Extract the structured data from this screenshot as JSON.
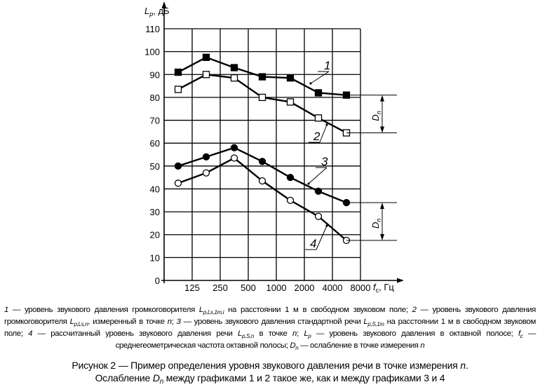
{
  "chart_data": {
    "type": "line",
    "ylabel_main": "L",
    "ylabel_sub": "p",
    "ylabel_unit": ", дБ",
    "xlabel_main": "f",
    "xlabel_sub": "c",
    "xlabel_unit": ", Гц",
    "ylim": [
      0,
      110
    ],
    "yticks": [
      0,
      10,
      20,
      30,
      40,
      50,
      60,
      70,
      80,
      90,
      100,
      110
    ],
    "categories": [
      "125",
      "250",
      "500",
      "1000",
      "2000",
      "4000",
      "8000"
    ],
    "grid": true,
    "series": [
      {
        "name": "1",
        "marker": "filled-square",
        "values": [
          91,
          97.5,
          93,
          89,
          88.5,
          82,
          81
        ]
      },
      {
        "name": "2",
        "marker": "open-square",
        "values": [
          83.5,
          90,
          88.5,
          80,
          78,
          71,
          64.5
        ]
      },
      {
        "name": "3",
        "marker": "filled-circle",
        "values": [
          50,
          54,
          58,
          52,
          45,
          39,
          34
        ]
      },
      {
        "name": "4",
        "marker": "open-circle",
        "values": [
          42.5,
          47,
          53.5,
          43.5,
          35,
          28,
          17.5
        ]
      }
    ],
    "annotations": {
      "dn_main": "D",
      "dn_sub": "n"
    }
  },
  "notes": [
    {
      "t": "1",
      "i": true
    },
    {
      "t": " — уровень звукового давления громкоговорителя "
    },
    {
      "t": "L",
      "i": true
    },
    {
      "t": "p,Ls,1m,i",
      "sub": true
    },
    {
      "t": " на расстоянии 1 м в свободном звуковом поле; "
    },
    {
      "t": "2",
      "i": true
    },
    {
      "t": " — уровень звукового давления громкоговорителя "
    },
    {
      "t": "L",
      "i": true
    },
    {
      "t": "p,Ls,n",
      "sub": true
    },
    {
      "t": ", измеренный в точке "
    },
    {
      "t": "n",
      "i": true
    },
    {
      "t": "; "
    },
    {
      "t": "3",
      "i": true
    },
    {
      "t": " — уровень звукового давления стандартной речи "
    },
    {
      "t": "L",
      "i": true
    },
    {
      "t": "p,S,1m",
      "sub": true
    },
    {
      "t": " на расстоянии 1 м в свободном звуковом поле; "
    },
    {
      "t": "4",
      "i": true
    },
    {
      "t": " — рассчитанный уровень звукового давления речи "
    },
    {
      "t": "L",
      "i": true
    },
    {
      "t": "p,S,n",
      "sub": true
    },
    {
      "t": " в точке "
    },
    {
      "t": "n",
      "i": true
    },
    {
      "t": "; "
    },
    {
      "t": "L",
      "i": true
    },
    {
      "t": "p",
      "sub": true
    },
    {
      "t": " — уровень звукового давле­ния в октавной полосе; "
    },
    {
      "t": "f",
      "i": true
    },
    {
      "t": "c",
      "sub": true
    },
    {
      "t": " — среднегеометрическая частота октавной полосы; "
    },
    {
      "t": "D",
      "i": true
    },
    {
      "t": "n",
      "sub": true
    },
    {
      "t": " — ослабление в точке измерения "
    },
    {
      "t": "n",
      "i": true
    }
  ],
  "caption": {
    "line1": "Рисунок  2 — Пример определения уровня звукового давления речи в точке измерения ",
    "line1_n": "n",
    "line1_end": ".",
    "line2_a": "Ослабление ",
    "line2_d": "D",
    "line2_dsub": "n",
    "line2_b": " между графиками 1 и 2 такое же, как и между графиками 3 и 4"
  }
}
